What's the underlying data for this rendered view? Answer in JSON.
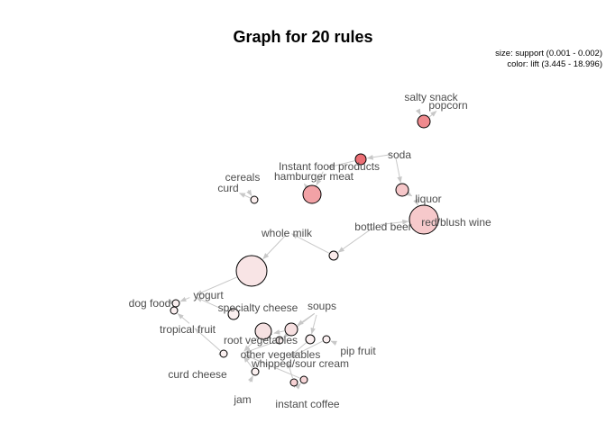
{
  "title": "Graph for 20 rules",
  "legend": {
    "size": "size: support (0.001 - 0.002)",
    "color": "color: lift (3.445 - 18.996)"
  },
  "items": [
    {
      "id": "salty_snack",
      "label": "salty snack"
    },
    {
      "id": "popcorn",
      "label": "popcorn"
    },
    {
      "id": "soda",
      "label": "soda"
    },
    {
      "id": "instant_food",
      "label": "Instant food products"
    },
    {
      "id": "hamburger",
      "label": "hamburger meat"
    },
    {
      "id": "cereals",
      "label": "cereals"
    },
    {
      "id": "curd",
      "label": "curd"
    },
    {
      "id": "liquor",
      "label": "liquor"
    },
    {
      "id": "bottled_beer",
      "label": "bottled beer"
    },
    {
      "id": "red_wine",
      "label": "red/blush wine"
    },
    {
      "id": "whole_milk",
      "label": "whole milk"
    },
    {
      "id": "yogurt",
      "label": "yogurt"
    },
    {
      "id": "dog_food",
      "label": "dog food"
    },
    {
      "id": "specialty_cheese",
      "label": "specialty cheese"
    },
    {
      "id": "soups",
      "label": "soups"
    },
    {
      "id": "tropical_fruit",
      "label": "tropical fruit"
    },
    {
      "id": "root_vegetables",
      "label": "root vegetables"
    },
    {
      "id": "pip_fruit",
      "label": "pip fruit"
    },
    {
      "id": "other_vegetables",
      "label": "other vegetables"
    },
    {
      "id": "whipped_cream",
      "label": "whipped/sour cream"
    },
    {
      "id": "curd_cheese",
      "label": "curd cheese"
    },
    {
      "id": "jam",
      "label": "jam"
    },
    {
      "id": "instant_coffee",
      "label": "instant coffee"
    }
  ],
  "rules": [
    {
      "id": "r_popcorn",
      "lhs": [
        "salty_snack"
      ],
      "rhs": "popcorn",
      "fill": "#ef8a8e"
    },
    {
      "id": "r_instant",
      "lhs": [
        "soda"
      ],
      "rhs": "instant_food",
      "fill": "#ec6f75"
    },
    {
      "id": "r_hamburger",
      "lhs": [
        "instant_food"
      ],
      "rhs": "hamburger",
      "fill": "#f2a2a6"
    },
    {
      "id": "r_liquor",
      "lhs": [
        "soda"
      ],
      "rhs": "liquor",
      "fill": "#f6c7c9"
    },
    {
      "id": "r_wine",
      "lhs": [
        "liquor",
        "bottled_beer"
      ],
      "rhs": "red_wine",
      "fill": "#f6c9cb"
    },
    {
      "id": "r_curd",
      "lhs": [
        "cereals"
      ],
      "rhs": "curd",
      "fill": "#fbeeee"
    },
    {
      "id": "r_milk",
      "lhs": [
        "bottled_beer"
      ],
      "rhs": "whole_milk",
      "fill": "#faeaea"
    },
    {
      "id": "r_yogurt",
      "lhs": [
        "whole_milk"
      ],
      "rhs": "yogurt",
      "fill": "#f8e4e5"
    },
    {
      "id": "r_dog1",
      "lhs": [
        "yogurt"
      ],
      "rhs": "dog_food",
      "fill": "#fbeff0"
    },
    {
      "id": "r_dog2",
      "lhs": [
        "tropical_fruit"
      ],
      "rhs": "dog_food",
      "fill": "#fbeff0"
    },
    {
      "id": "r_spec",
      "lhs": [
        "specialty_cheese"
      ],
      "rhs": "yogurt",
      "fill": "#fbf0f0"
    },
    {
      "id": "r_root1",
      "lhs": [
        "root_vegetables"
      ],
      "rhs": "other_vegetables",
      "fill": "#f6e1e2"
    },
    {
      "id": "r_soups1",
      "lhs": [
        "soups"
      ],
      "rhs": "root_vegetables",
      "fill": "#f6dfe0"
    },
    {
      "id": "r_soups2",
      "lhs": [
        "soups"
      ],
      "rhs": "whipped_cream",
      "fill": "#fbeff0"
    },
    {
      "id": "r_pip",
      "lhs": [
        "pip_fruit"
      ],
      "rhs": "whipped_cream",
      "fill": "#fbeff0"
    },
    {
      "id": "r_soups3",
      "lhs": [
        "soups"
      ],
      "rhs": "other_vegetables",
      "fill": "#fbeff0"
    },
    {
      "id": "r_curdcheese",
      "lhs": [
        "curd_cheese"
      ],
      "rhs": "tropical_fruit",
      "fill": "#fbf0f0"
    },
    {
      "id": "r_jam",
      "lhs": [
        "jam"
      ],
      "rhs": "other_vegetables",
      "fill": "#fbf0f0"
    },
    {
      "id": "r_coffee1",
      "lhs": [
        "instant_coffee"
      ],
      "rhs": "whipped_cream",
      "fill": "#f7d2d4"
    },
    {
      "id": "r_coffee2",
      "lhs": [
        "instant_coffee"
      ],
      "rhs": "other_vegetables",
      "fill": "#f7d6d8"
    }
  ]
}
